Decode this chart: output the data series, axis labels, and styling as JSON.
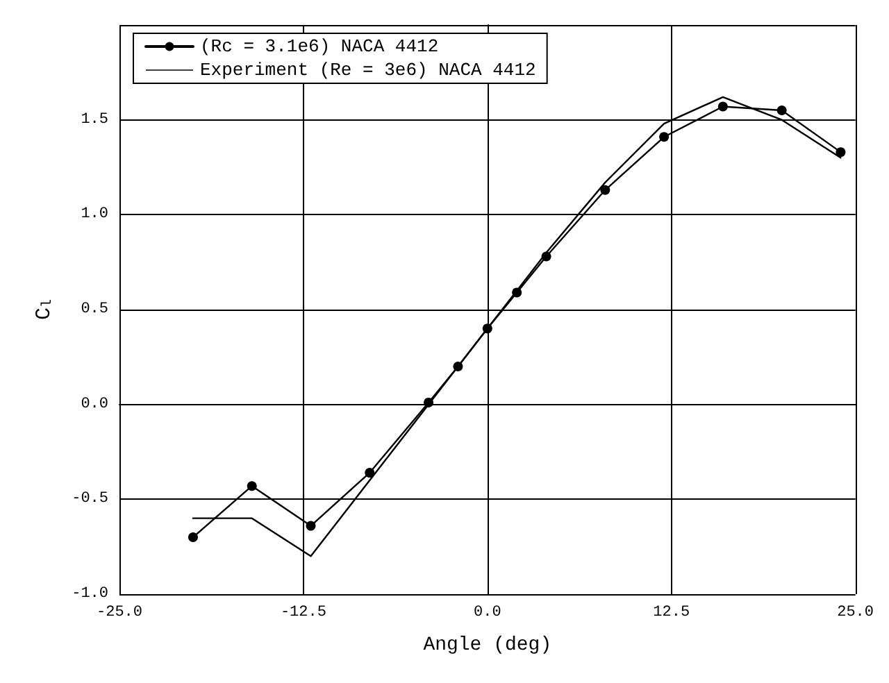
{
  "chart_data": {
    "type": "line",
    "xlabel": "Angle (deg)",
    "ylabel": "C$_{l}$",
    "xlim": [
      -25,
      25
    ],
    "ylim": [
      -1,
      2
    ],
    "xticks": [
      {
        "value": -25,
        "label": "-25.0"
      },
      {
        "value": -12.5,
        "label": "-12.5"
      },
      {
        "value": 0,
        "label": "0.0"
      },
      {
        "value": 12.5,
        "label": "12.5"
      },
      {
        "value": 25,
        "label": "25.0"
      }
    ],
    "yticks": [
      {
        "value": -1,
        "label": "-1.0"
      },
      {
        "value": -0.5,
        "label": "-0.5"
      },
      {
        "value": 0,
        "label": "0.0"
      },
      {
        "value": 0.5,
        "label": "0.5"
      },
      {
        "value": 1,
        "label": "1.0"
      },
      {
        "value": 1.5,
        "label": "1.5"
      },
      {
        "value": 2,
        "label": null
      }
    ],
    "grid": true,
    "legend": "top left",
    "line_style": "solid",
    "series": [
      {
        "name": "(Rc = 3.1e6) NACA 4412",
        "color": "#000000",
        "marker": "circle",
        "x": [
          -20,
          -16,
          -12,
          -8,
          -4,
          -2,
          0,
          2,
          4,
          8,
          12,
          16,
          20,
          24
        ],
        "values": [
          -0.7,
          -0.43,
          -0.64,
          -0.36,
          0.01,
          0.2,
          0.4,
          0.59,
          0.78,
          1.13,
          1.41,
          1.57,
          1.55,
          1.33
        ]
      },
      {
        "name": "Experiment (Re = 3e6) NACA 4412",
        "color": "#000000",
        "marker": "none",
        "x": [
          -20,
          -16,
          -12,
          -4,
          0,
          4,
          8,
          12,
          16,
          20,
          24
        ],
        "values": [
          -0.6,
          -0.6,
          -0.8,
          0.0,
          0.4,
          0.8,
          1.17,
          1.48,
          1.62,
          1.5,
          1.3
        ]
      }
    ]
  }
}
